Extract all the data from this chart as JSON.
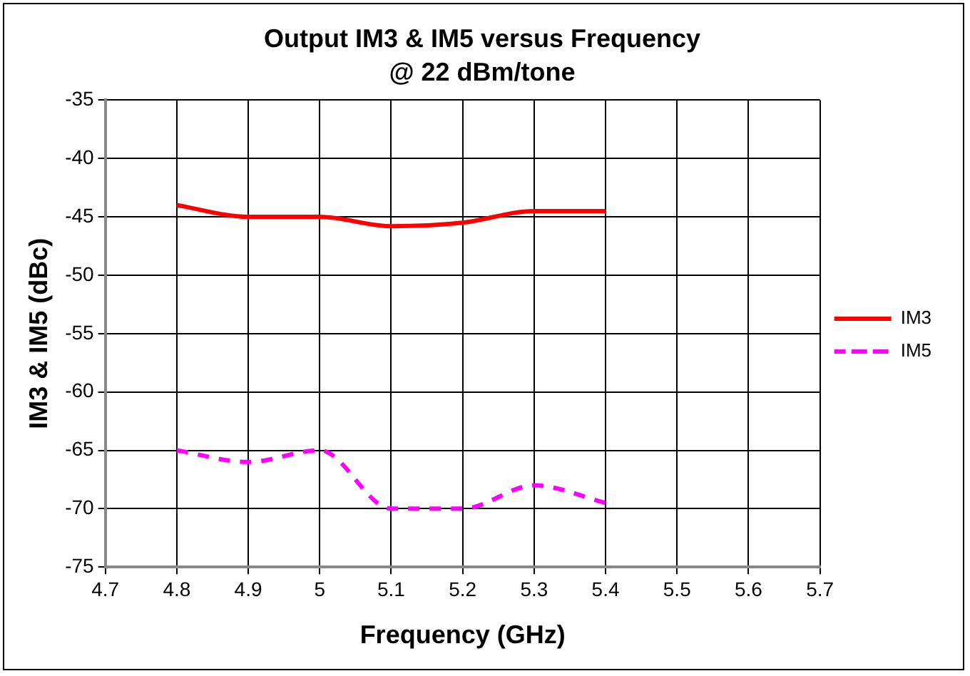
{
  "chart_data": {
    "type": "line",
    "title": "Output IM3 & IM5 versus Frequency",
    "subtitle": "@ 22 dBm/tone",
    "xlabel": "Frequency (GHz)",
    "ylabel": "IM3 & IM5 (dBc)",
    "x": [
      4.8,
      4.9,
      5.0,
      5.1,
      5.2,
      5.3,
      5.4
    ],
    "series": [
      {
        "name": "IM3",
        "color": "#ff0000",
        "line_style": "solid",
        "values": [
          -44,
          -45,
          -45,
          -45.8,
          -45.5,
          -44.5,
          -44.5
        ]
      },
      {
        "name": "IM5",
        "color": "#ff00ff",
        "line_style": "dashed",
        "values": [
          -65,
          -66,
          -65,
          -70,
          -70,
          -68,
          -69.5
        ]
      }
    ],
    "xlim": [
      4.7,
      5.7
    ],
    "xticks": [
      4.7,
      4.8,
      4.9,
      {
        "value": 5,
        "label": "5"
      },
      5.1,
      5.2,
      5.3,
      5.4,
      5.5,
      5.6,
      5.7
    ],
    "ylim": [
      -75,
      -35
    ],
    "yticks": [
      -75,
      -70,
      -65,
      -60,
      -55,
      -50,
      -45,
      -40,
      -35
    ],
    "grid": true,
    "legend": "right",
    "marker": "none"
  }
}
